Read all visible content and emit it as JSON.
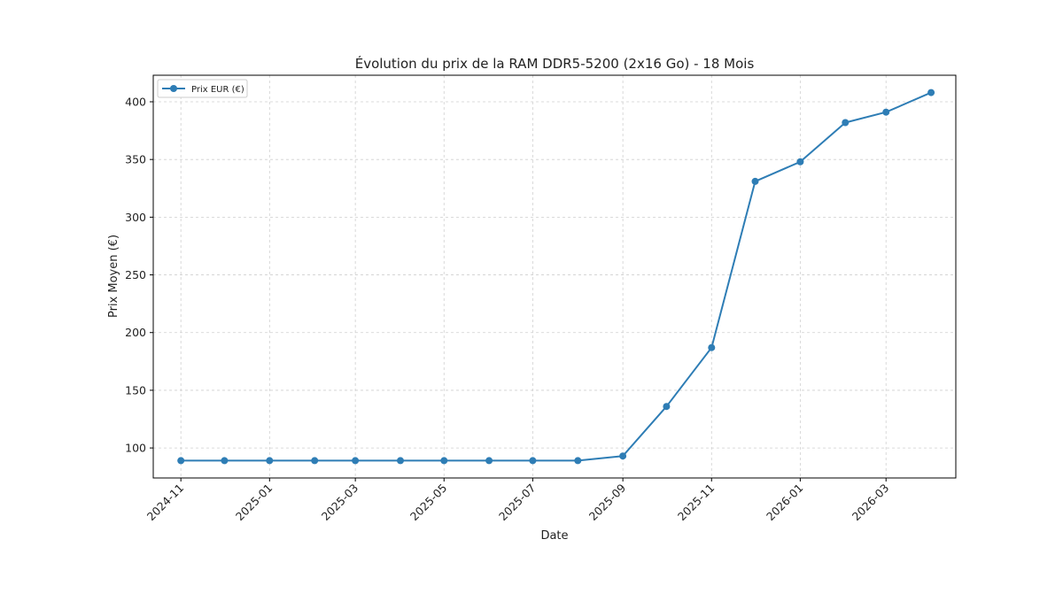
{
  "chart_data": {
    "type": "line",
    "title": "Évolution du prix de la RAM DDR5-5200 (2x16 Go) - 18 Mois",
    "xlabel": "Date",
    "ylabel": "Prix Moyen (€)",
    "x": [
      "2024-11",
      "2024-12",
      "2025-01",
      "2025-02",
      "2025-03",
      "2025-04",
      "2025-05",
      "2025-06",
      "2025-07",
      "2025-08",
      "2025-09",
      "2025-10",
      "2025-11",
      "2025-12",
      "2026-01",
      "2026-02",
      "2026-03",
      "2026-04"
    ],
    "series": [
      {
        "name": "Prix EUR (€)",
        "color": "#2e7db5",
        "values": [
          89,
          89,
          89,
          89,
          89,
          89,
          89,
          89,
          89,
          89,
          93,
          136,
          187,
          331,
          348,
          382,
          391,
          408
        ]
      }
    ],
    "x_ticks": [
      "2024-11",
      "2025-01",
      "2025-03",
      "2025-05",
      "2025-07",
      "2025-09",
      "2025-11",
      "2026-01",
      "2026-03"
    ],
    "y_ticks": [
      100,
      150,
      200,
      250,
      300,
      350,
      400
    ],
    "xlim": [
      "2024-10-13",
      "2026-04-18"
    ],
    "ylim": [
      74,
      423
    ],
    "grid": true,
    "legend_position": "top-left",
    "x_tick_rotation": 45
  }
}
